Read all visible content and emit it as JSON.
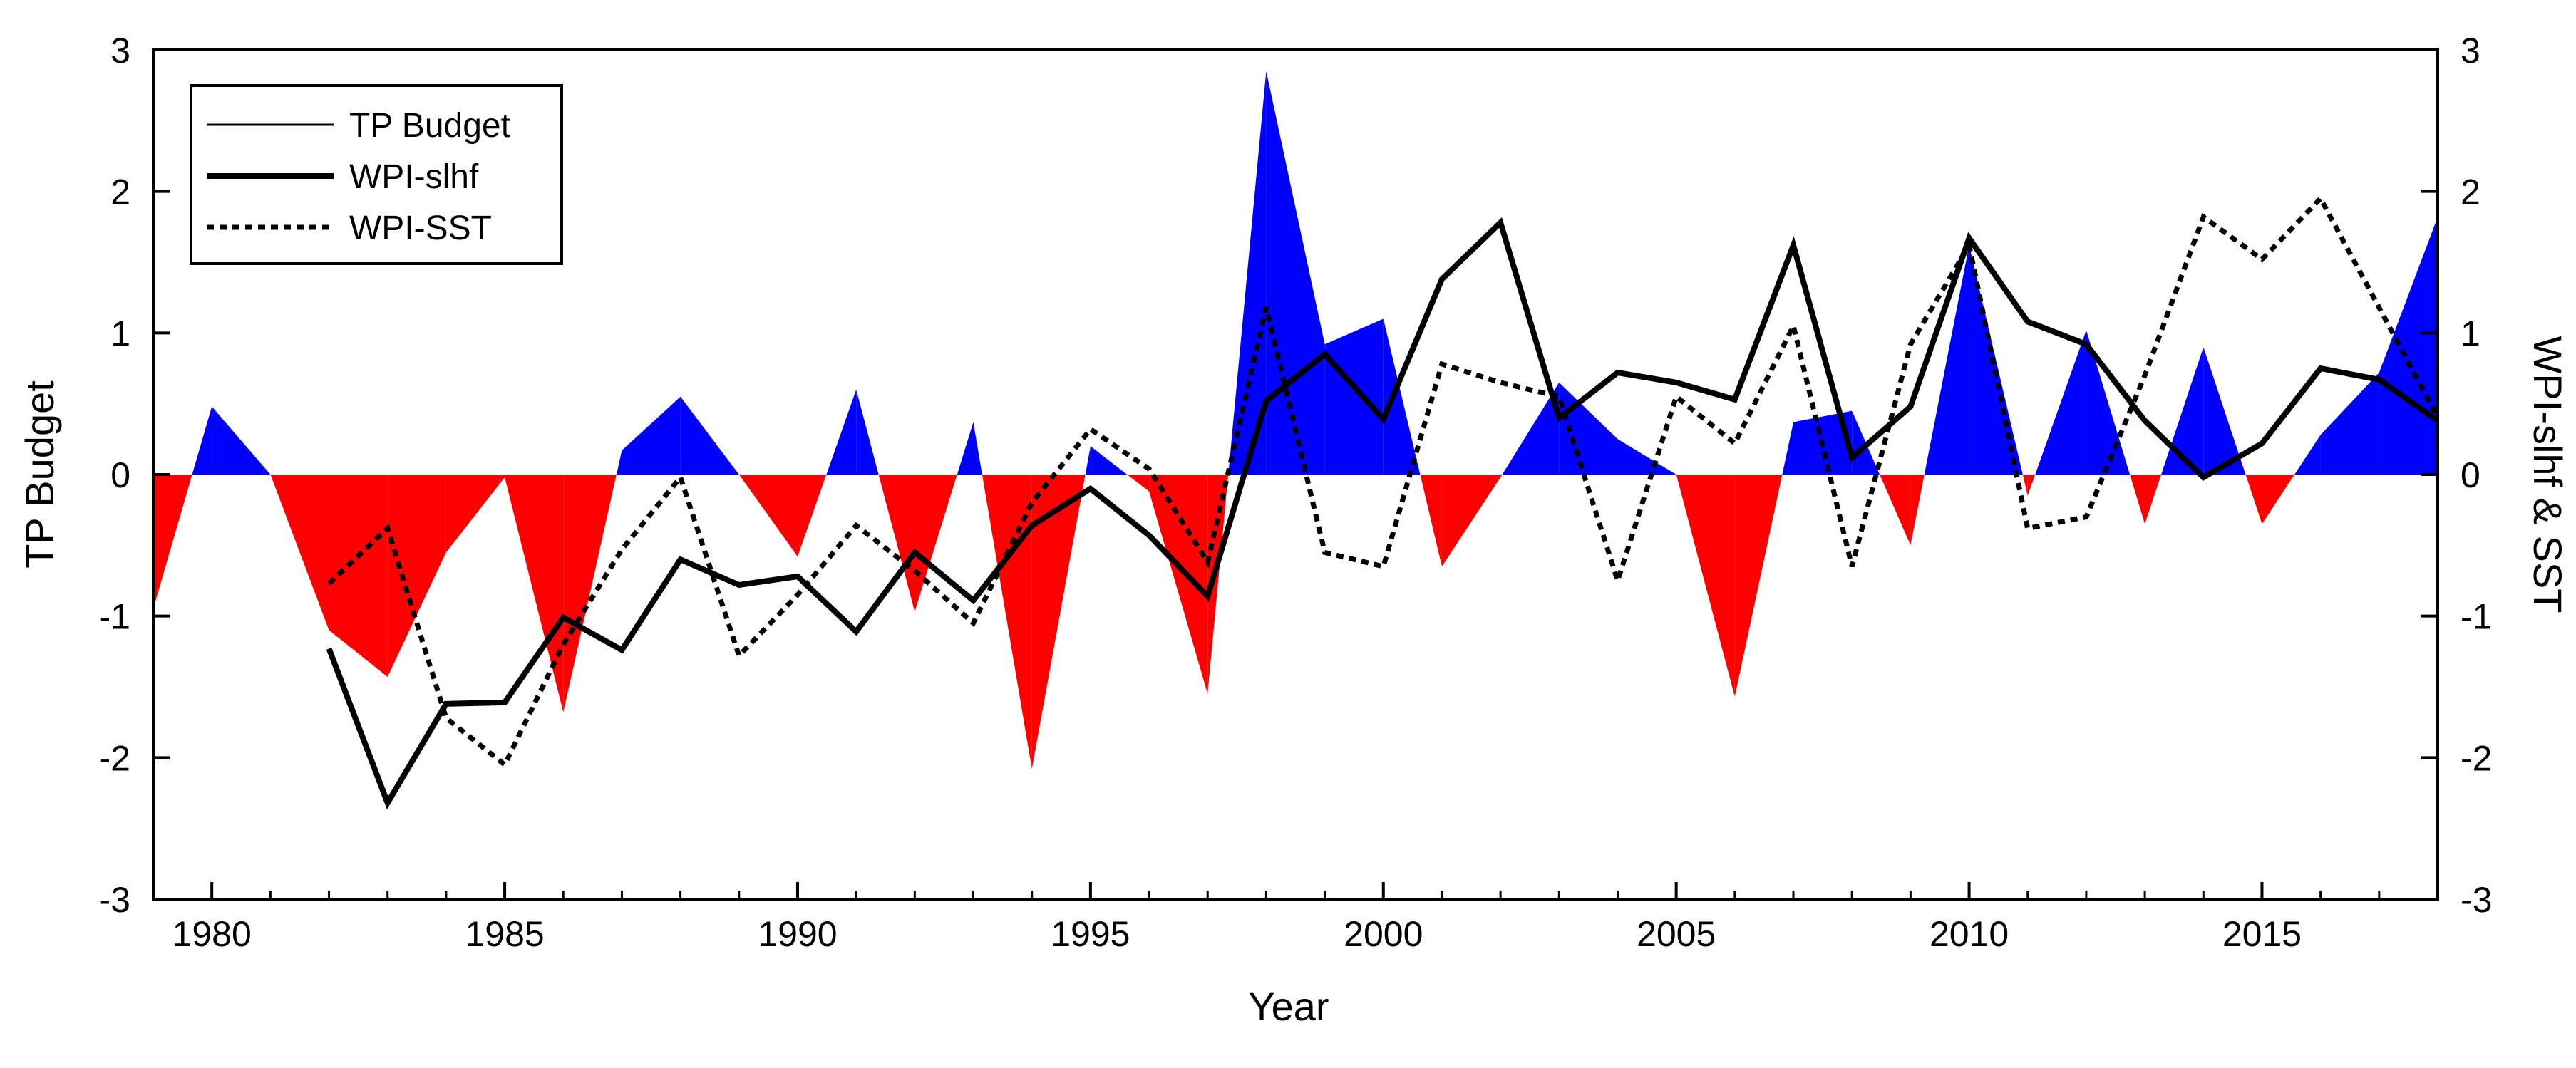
{
  "chart_data": {
    "type": "area+line",
    "xlabel": "Year",
    "ylabel_left": "TP Budget",
    "ylabel_right": "WPI-slhf & SST",
    "xlim": [
      1979,
      2018
    ],
    "ylim": [
      -3,
      3
    ],
    "xticks": [
      1980,
      1985,
      1990,
      1995,
      2000,
      2005,
      2010,
      2015
    ],
    "yticks": [
      -3,
      -2,
      -1,
      0,
      1,
      2,
      3
    ],
    "fill_colors": {
      "positive": "#0000ff",
      "negative": "#ff0000"
    },
    "legend": {
      "position": "top-left",
      "entries": [
        {
          "label": "TP Budget",
          "style": "thin"
        },
        {
          "label": "WPI-slhf",
          "style": "thick"
        },
        {
          "label": "WPI-SST",
          "style": "dotted"
        }
      ]
    },
    "series": [
      {
        "name": "TP Budget",
        "style": "filled-area",
        "x": [
          1979,
          1980,
          1981,
          1982,
          1983,
          1984,
          1985,
          1986,
          1987,
          1988,
          1989,
          1990,
          1991,
          1992,
          1993,
          1994,
          1995,
          1996,
          1997,
          1998,
          1999,
          2000,
          2001,
          2002,
          2003,
          2004,
          2005,
          2006,
          2007,
          2008,
          2009,
          2010,
          2011,
          2012,
          2013,
          2014,
          2015,
          2016,
          2017,
          2018
        ],
        "values": [
          -0.95,
          0.48,
          0.0,
          -1.1,
          -1.43,
          -0.55,
          -0.02,
          -1.68,
          0.17,
          0.55,
          0.0,
          -0.58,
          0.6,
          -0.97,
          0.37,
          -2.08,
          0.2,
          -0.12,
          -1.55,
          2.85,
          0.92,
          1.1,
          -0.65,
          -0.02,
          0.65,
          0.25,
          0.0,
          -1.57,
          0.37,
          0.45,
          -0.5,
          1.62,
          -0.15,
          1.02,
          -0.35,
          0.9,
          -0.35,
          0.28,
          0.72,
          1.82
        ]
      },
      {
        "name": "WPI-slhf",
        "style": "thick",
        "x": [
          1982,
          1983,
          1984,
          1985,
          1986,
          1987,
          1988,
          1989,
          1990,
          1991,
          1992,
          1993,
          1994,
          1995,
          1996,
          1997,
          1998,
          1999,
          2000,
          2001,
          2002,
          2003,
          2004,
          2005,
          2006,
          2007,
          2008,
          2009,
          2010,
          2011,
          2012,
          2013,
          2014,
          2015,
          2016,
          2017,
          2018
        ],
        "values": [
          -1.23,
          -2.32,
          -1.62,
          -1.61,
          -1.01,
          -1.24,
          -0.6,
          -0.78,
          -0.72,
          -1.11,
          -0.55,
          -0.89,
          -0.36,
          -0.1,
          -0.43,
          -0.86,
          0.52,
          0.85,
          0.39,
          1.38,
          1.78,
          0.4,
          0.72,
          0.65,
          0.53,
          1.62,
          0.12,
          0.48,
          1.67,
          1.08,
          0.92,
          0.38,
          -0.02,
          0.22,
          0.75,
          0.67,
          0.38
        ]
      },
      {
        "name": "WPI-SST",
        "style": "dotted",
        "x": [
          1982,
          1983,
          1984,
          1985,
          1986,
          1987,
          1988,
          1989,
          1990,
          1991,
          1992,
          1993,
          1994,
          1995,
          1996,
          1997,
          1998,
          1999,
          2000,
          2001,
          2002,
          2003,
          2004,
          2005,
          2006,
          2007,
          2008,
          2009,
          2010,
          2011,
          2012,
          2013,
          2014,
          2015,
          2016,
          2017,
          2018
        ],
        "values": [
          -0.77,
          -0.38,
          -1.72,
          -2.05,
          -1.2,
          -0.53,
          -0.02,
          -1.28,
          -0.85,
          -0.36,
          -0.68,
          -1.05,
          -0.2,
          0.32,
          0.04,
          -0.62,
          1.18,
          -0.55,
          -0.65,
          0.78,
          0.65,
          0.55,
          -0.75,
          0.55,
          0.22,
          1.05,
          -0.65,
          0.92,
          1.62,
          -0.38,
          -0.3,
          0.7,
          1.82,
          1.52,
          1.95,
          1.18,
          0.4
        ]
      }
    ]
  }
}
